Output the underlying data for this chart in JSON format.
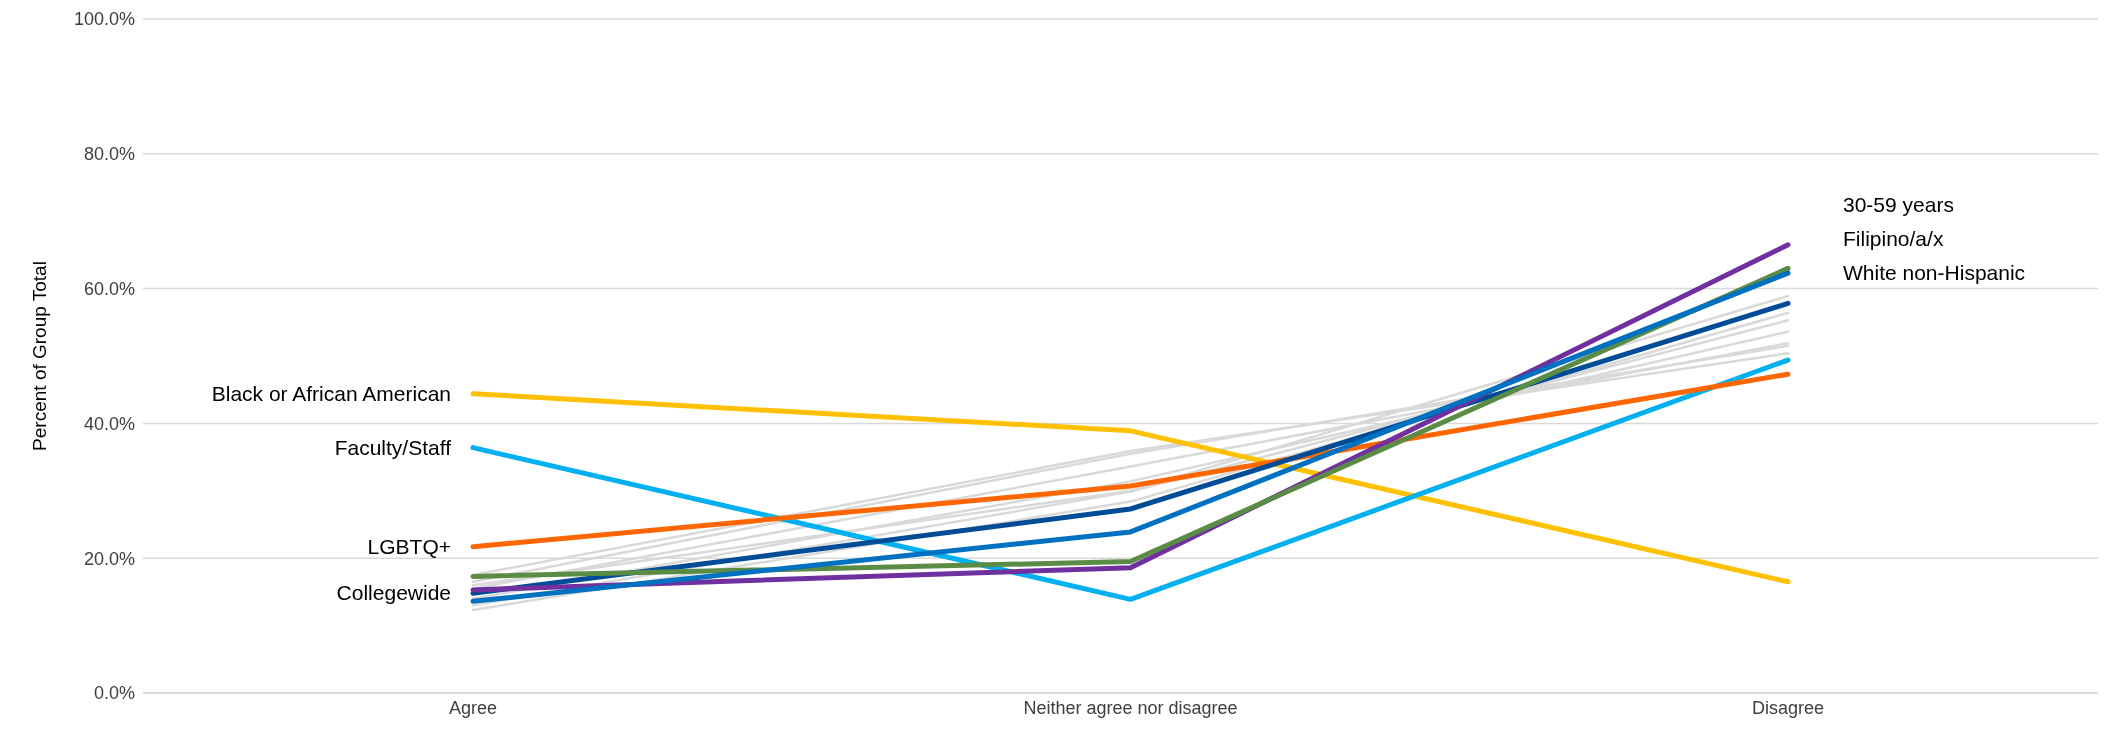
{
  "chart_data": {
    "type": "line",
    "ylabel": "Percent of Group Total",
    "categories": [
      "Agree",
      "Neither agree nor disagree",
      "Disagree"
    ],
    "ylim": [
      0,
      100
    ],
    "yticks": [
      {
        "value": 0,
        "label": "0.0%"
      },
      {
        "value": 20,
        "label": "20.0%"
      },
      {
        "value": 40,
        "label": "40.0%"
      },
      {
        "value": 60,
        "label": "60.0%"
      },
      {
        "value": 80,
        "label": "80.0%"
      },
      {
        "value": 100,
        "label": "100.0%"
      }
    ],
    "grid": "y",
    "legend": false,
    "marker": "none",
    "line_style": "solid",
    "series": [
      {
        "color": "#d9d9d9",
        "values": [
          17.5,
          35.9,
          50.4
        ]
      },
      {
        "color": "#d9d9d9",
        "values": [
          16.5,
          35.5,
          51.5
        ]
      },
      {
        "color": "#d9d9d9",
        "values": [
          15.5,
          33.6,
          51.9
        ]
      },
      {
        "color": "#d9d9d9",
        "values": [
          14,
          31.4,
          53.6
        ]
      },
      {
        "color": "#d9d9d9",
        "values": [
          13,
          29.9,
          55.3
        ]
      },
      {
        "color": "#d9d9d9",
        "values": [
          12.3,
          28.4,
          56.4
        ]
      },
      {
        "color": "#d9d9d9",
        "values": [
          16,
          30,
          58.9
        ]
      },
      {
        "name": "Black or African American",
        "color": "#ffc000",
        "values": [
          44.4,
          38.9,
          16.5
        ]
      },
      {
        "name": "Faculty/Staff",
        "color": "#00b0f0",
        "values": [
          36.4,
          13.9,
          49.4
        ]
      },
      {
        "name": "LGBTQ+",
        "color": "#ff6600",
        "values": [
          21.7,
          30.7,
          47.3
        ]
      },
      {
        "name": "Collegewide",
        "color": "#004c97",
        "values": [
          14.8,
          27.3,
          57.8
        ]
      },
      {
        "name": "30-59 years",
        "color": "#7030a0",
        "values": [
          15.3,
          18.6,
          66.5
        ]
      },
      {
        "name": "Filipino/a/x",
        "color": "#5b8c46",
        "values": [
          17.3,
          19.5,
          63.0
        ]
      },
      {
        "name": "White non-Hispanic",
        "color": "#0070c0",
        "values": [
          13.6,
          23.9,
          62.3
        ]
      }
    ]
  }
}
